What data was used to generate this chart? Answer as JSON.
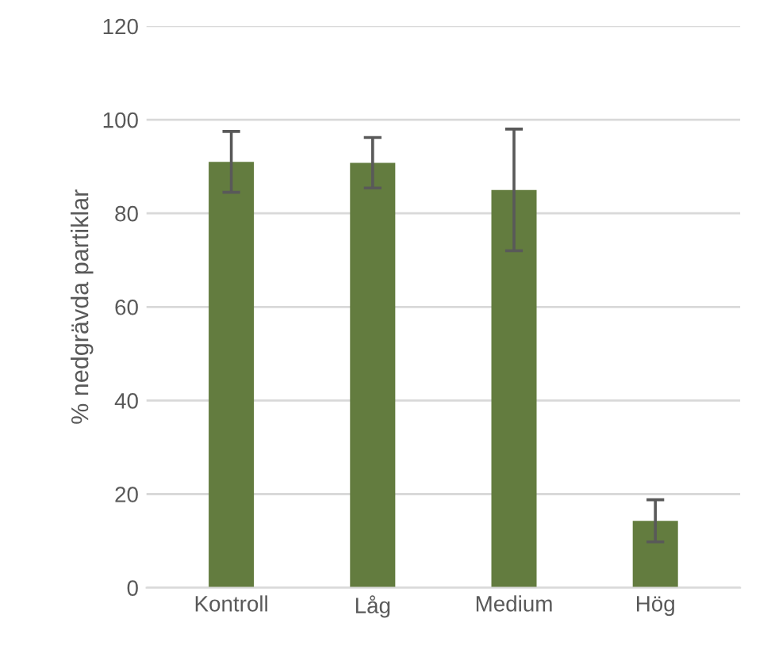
{
  "chart_data": {
    "type": "bar",
    "ylabel": "% nedgrävda partiklar",
    "categories": [
      "Kontroll",
      "Låg",
      "Medium",
      "Hög"
    ],
    "values": [
      91,
      90.8,
      85,
      14.3
    ],
    "errors": [
      6.5,
      5.4,
      13,
      4.5
    ],
    "color": "#637c3f",
    "ylim": [
      0,
      120
    ],
    "yticks": [
      0,
      20,
      40,
      60,
      80,
      100,
      120
    ],
    "grid": "y"
  }
}
